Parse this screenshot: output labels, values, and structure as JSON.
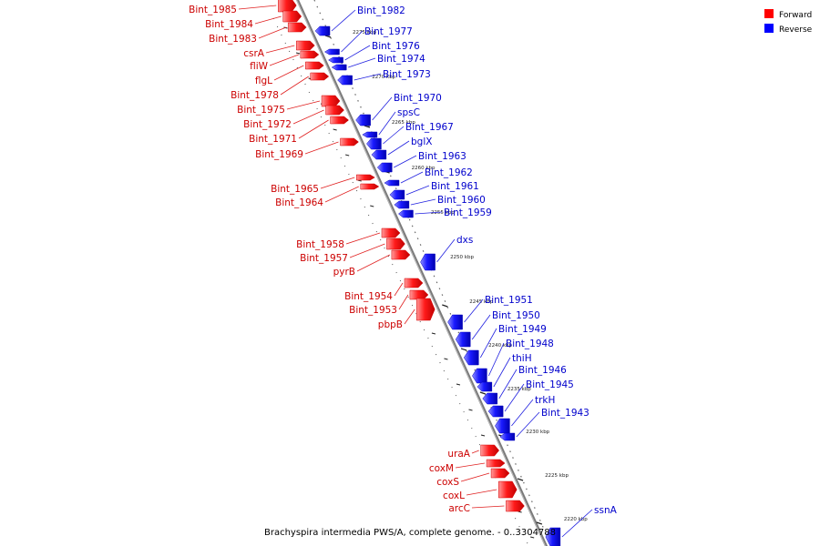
{
  "title": "Brachyspira intermedia PWS/A, complete genome. - 0..3304788",
  "legend": [
    {
      "label": "Forward",
      "color": "#ff0000"
    },
    {
      "label": "Reverse",
      "color": "#0000ff"
    }
  ],
  "colors": {
    "forward": "#ff0000",
    "reverse": "#0000ff",
    "backbone": "#7a7a7a",
    "label_forward": "#cc0000",
    "label_reverse": "#0000cc"
  },
  "ticks": [
    "2275 kbp",
    "2270 kbp",
    "2265 kbp",
    "2260 kbp",
    "2255 kbp",
    "2250 kbp",
    "2245 kbp",
    "2240 kbp",
    "2235 kbp",
    "2230 kbp",
    "2225 kbp",
    "2220 kbp"
  ],
  "forward_genes": [
    "Bint_1985",
    "Bint_1984",
    "Bint_1983",
    "csrA",
    "fliW",
    "flgL",
    "Bint_1978",
    "Bint_1975",
    "Bint_1972",
    "Bint_1971",
    "Bint_1969",
    "Bint_1965",
    "Bint_1964",
    "Bint_1958",
    "Bint_1957",
    "pyrB",
    "Bint_1954",
    "Bint_1953",
    "pbpB",
    "uraA",
    "coxM",
    "coxS",
    "coxL",
    "arcC"
  ],
  "reverse_genes": [
    "Bint_1982",
    "Bint_1977",
    "Bint_1976",
    "Bint_1974",
    "Bint_1973",
    "Bint_1970",
    "spsC",
    "Bint_1967",
    "bglX",
    "Bint_1963",
    "Bint_1962",
    "Bint_1961",
    "Bint_1960",
    "Bint_1959",
    "dxs",
    "Bint_1951",
    "Bint_1950",
    "Bint_1949",
    "Bint_1948",
    "thiH",
    "Bint_1946",
    "Bint_1945",
    "trkH",
    "Bint_1943",
    "ssnA"
  ]
}
